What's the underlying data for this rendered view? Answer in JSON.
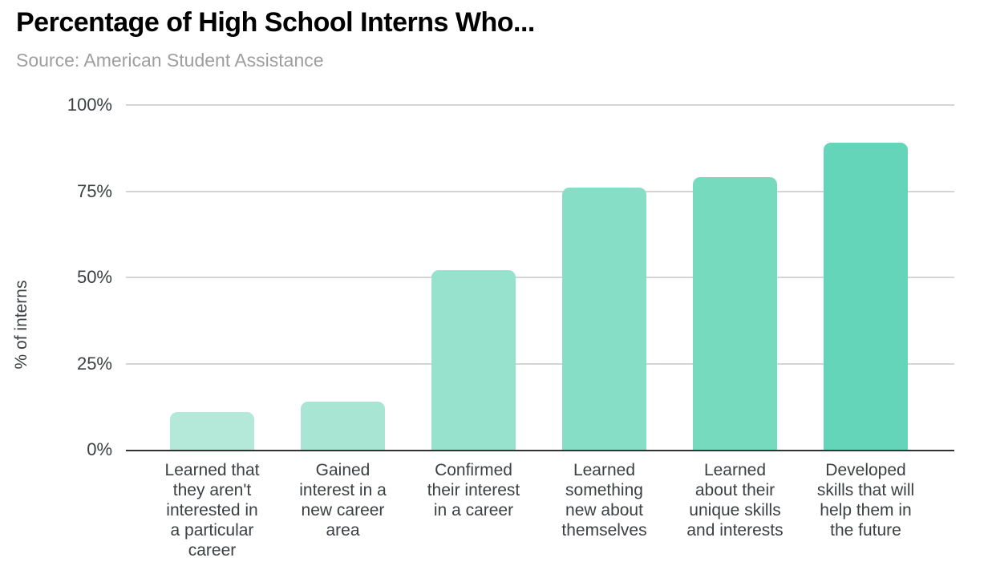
{
  "page": {
    "title": "Percentage of High School Interns Who...",
    "source": "Source: American Student Assistance"
  },
  "chart_data": {
    "type": "bar",
    "title": "Percentage of High School Interns Who...",
    "source": "Source: American Student Assistance",
    "xlabel": "",
    "ylabel": "% of interns",
    "ylim": [
      0,
      100
    ],
    "grid": "horizontal",
    "legend": "none",
    "yticks": [
      {
        "label": "100%",
        "value": 100
      },
      {
        "label": "75%",
        "value": 75
      },
      {
        "label": "50%",
        "value": 50
      },
      {
        "label": "25%",
        "value": 25
      },
      {
        "label": "0%",
        "value": 0
      }
    ],
    "categories": [
      "Learned that they aren't interested in a particular career",
      "Gained interest in a new career area",
      "Confirmed their interest in a career",
      "Learned something new about themselves",
      "Learned about their unique skills and interests",
      "Developed skills that will help them in the future"
    ],
    "category_lines": [
      [
        "Learned that",
        "they aren't",
        "interested in",
        "a particular",
        "career"
      ],
      [
        "Gained",
        "interest in a",
        "new career",
        "area"
      ],
      [
        "Confirmed",
        "their interest",
        "in a career"
      ],
      [
        "Learned",
        "something",
        "new about",
        "themselves"
      ],
      [
        "Learned",
        "about their",
        "unique skills",
        "and interests"
      ],
      [
        "Developed",
        "skills that will",
        "help them in",
        "the future"
      ]
    ],
    "values": [
      11,
      14,
      52,
      76,
      79,
      89
    ],
    "bar_colors": [
      "#b4e9d9",
      "#a8e6d3",
      "#97e2cd",
      "#87dec6",
      "#76dabf",
      "#64d5b8"
    ]
  },
  "style": {
    "title_color": "#000000",
    "source_color": "#9e9e9e",
    "tick_color": "#3c4043",
    "grid_color": "#d5d5d5",
    "axis_line_color": "#333333",
    "background": "#ffffff"
  }
}
